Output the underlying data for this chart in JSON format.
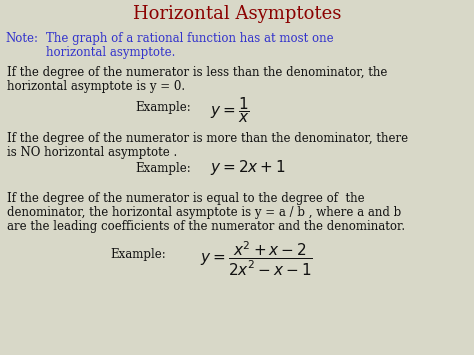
{
  "title": "Horizontal Asymptotes",
  "title_color": "#8B0000",
  "title_fontsize": 13,
  "note_label": "Note:",
  "note_color": "#3333CC",
  "body_color": "#111111",
  "background_color": "#D8D8C8",
  "block1_example_math": "$y = \\dfrac{1}{x}$",
  "block2_example_math": "$y = 2x+1$",
  "block3_example_math": "$y = \\dfrac{x^2+x-2}{2x^2-x-1}$",
  "body_fontsize": 8.5,
  "math_fontsize": 11
}
